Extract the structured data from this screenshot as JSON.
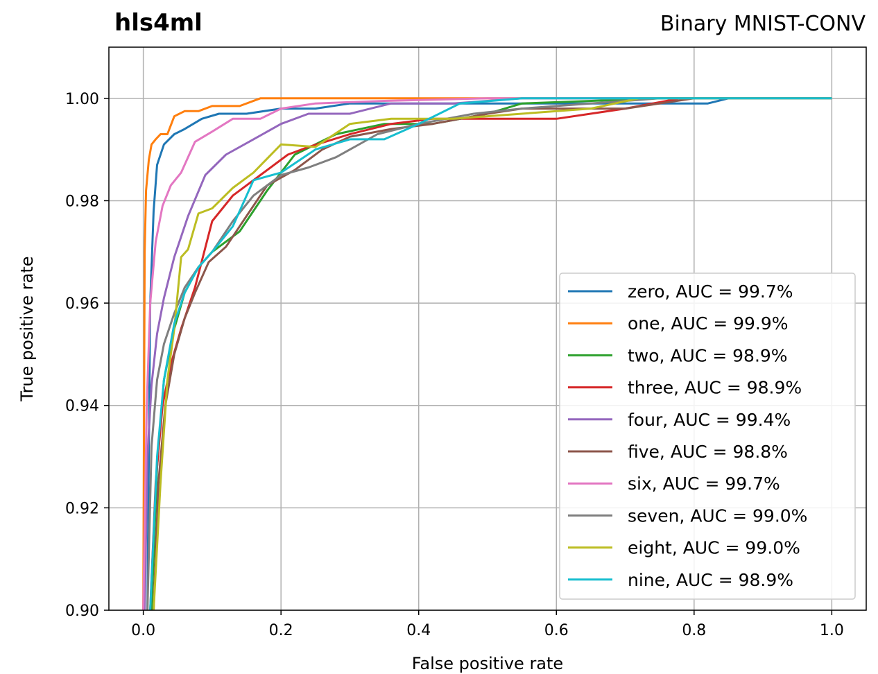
{
  "chart_data": {
    "type": "line",
    "title": "hls4ml",
    "subtitle": "Binary MNIST-CONV",
    "xlabel": "False positive rate",
    "ylabel": "True positive rate",
    "xlim": [
      -0.05,
      1.05
    ],
    "ylim": [
      0.9,
      1.01
    ],
    "xticks": [
      0.0,
      0.2,
      0.4,
      0.6,
      0.8,
      1.0
    ],
    "xtick_labels": [
      "0.0",
      "0.2",
      "0.4",
      "0.6",
      "0.8",
      "1.0"
    ],
    "yticks": [
      0.9,
      0.92,
      0.94,
      0.96,
      0.98,
      1.0
    ],
    "ytick_labels": [
      "0.90",
      "0.92",
      "0.94",
      "0.96",
      "0.98",
      "1.00"
    ],
    "grid": true,
    "legend_position": "lower-right",
    "series": [
      {
        "name": "zero, AUC = 99.7%",
        "color": "#1f77b4",
        "x": [
          0.006,
          0.01,
          0.015,
          0.02,
          0.03,
          0.045,
          0.06,
          0.085,
          0.11,
          0.15,
          0.2,
          0.25,
          0.3,
          0.5,
          0.6,
          0.8,
          0.82,
          0.85,
          1.0
        ],
        "y": [
          0.9,
          0.96,
          0.978,
          0.987,
          0.991,
          0.993,
          0.994,
          0.996,
          0.997,
          0.997,
          0.998,
          0.998,
          0.999,
          0.999,
          0.999,
          0.999,
          0.999,
          1.0,
          1.0
        ]
      },
      {
        "name": "one, AUC = 99.9%",
        "color": "#ff7f0e",
        "x": [
          0.0,
          0.002,
          0.004,
          0.008,
          0.012,
          0.018,
          0.025,
          0.035,
          0.045,
          0.06,
          0.08,
          0.1,
          0.14,
          0.17,
          0.2,
          1.0
        ],
        "y": [
          0.9,
          0.97,
          0.982,
          0.988,
          0.991,
          0.992,
          0.993,
          0.993,
          0.9965,
          0.9975,
          0.9975,
          0.9985,
          0.9985,
          1.0,
          1.0,
          1.0
        ],
        "y_note": ""
      },
      {
        "name": "two, AUC = 98.9%",
        "color": "#2ca02c",
        "x": [
          0.012,
          0.02,
          0.03,
          0.045,
          0.06,
          0.08,
          0.1,
          0.14,
          0.18,
          0.22,
          0.28,
          0.35,
          0.42,
          0.5,
          0.55,
          0.75,
          1.0
        ],
        "y": [
          0.9,
          0.928,
          0.945,
          0.955,
          0.962,
          0.967,
          0.97,
          0.974,
          0.982,
          0.989,
          0.993,
          0.995,
          0.995,
          0.997,
          0.999,
          1.0,
          1.0
        ]
      },
      {
        "name": "three, AUC = 98.9%",
        "color": "#d62728",
        "x": [
          0.01,
          0.018,
          0.028,
          0.04,
          0.055,
          0.075,
          0.1,
          0.13,
          0.17,
          0.21,
          0.24,
          0.3,
          0.36,
          0.42,
          0.5,
          0.6,
          0.7,
          0.78,
          1.0
        ],
        "y": [
          0.9,
          0.925,
          0.94,
          0.948,
          0.955,
          0.963,
          0.976,
          0.981,
          0.985,
          0.989,
          0.9905,
          0.993,
          0.995,
          0.996,
          0.996,
          0.996,
          0.998,
          1.0,
          1.0
        ]
      },
      {
        "name": "four, AUC = 99.4%",
        "color": "#9467bd",
        "x": [
          0.002,
          0.006,
          0.012,
          0.02,
          0.03,
          0.045,
          0.065,
          0.09,
          0.12,
          0.16,
          0.2,
          0.24,
          0.3,
          0.36,
          0.45,
          0.55,
          1.0
        ],
        "y": [
          0.9,
          0.93,
          0.944,
          0.954,
          0.961,
          0.969,
          0.977,
          0.985,
          0.989,
          0.992,
          0.995,
          0.997,
          0.997,
          0.999,
          0.999,
          1.0,
          1.0
        ]
      },
      {
        "name": "five, AUC = 98.8%",
        "color": "#8c564b",
        "x": [
          0.015,
          0.022,
          0.032,
          0.045,
          0.06,
          0.075,
          0.095,
          0.12,
          0.15,
          0.18,
          0.22,
          0.26,
          0.3,
          0.36,
          0.42,
          0.5,
          0.55,
          0.7,
          0.8,
          1.0
        ],
        "y": [
          0.9,
          0.925,
          0.94,
          0.95,
          0.957,
          0.962,
          0.968,
          0.971,
          0.977,
          0.983,
          0.986,
          0.99,
          0.9925,
          0.994,
          0.995,
          0.997,
          0.998,
          0.998,
          1.0,
          1.0
        ]
      },
      {
        "name": "six, AUC = 99.7%",
        "color": "#e377c2",
        "x": [
          0.0,
          0.005,
          0.01,
          0.018,
          0.028,
          0.04,
          0.055,
          0.075,
          0.1,
          0.13,
          0.17,
          0.2,
          0.25,
          0.35,
          0.5,
          1.0
        ],
        "y": [
          0.9,
          0.94,
          0.96,
          0.972,
          0.979,
          0.983,
          0.9855,
          0.9915,
          0.9935,
          0.996,
          0.996,
          0.998,
          0.999,
          0.9995,
          1.0,
          1.0
        ]
      },
      {
        "name": "seven, AUC = 99.0%",
        "color": "#7f7f7f",
        "x": [
          0.006,
          0.012,
          0.02,
          0.03,
          0.045,
          0.06,
          0.08,
          0.1,
          0.13,
          0.16,
          0.2,
          0.24,
          0.28,
          0.34,
          0.4,
          0.48,
          0.55,
          0.75,
          1.0
        ],
        "y": [
          0.9,
          0.932,
          0.945,
          0.952,
          0.958,
          0.963,
          0.967,
          0.97,
          0.976,
          0.981,
          0.985,
          0.9865,
          0.9885,
          0.993,
          0.995,
          0.997,
          0.998,
          1.0,
          1.0
        ]
      },
      {
        "name": "eight, AUC = 99.0%",
        "color": "#bcbd22",
        "x": [
          0.015,
          0.025,
          0.035,
          0.045,
          0.055,
          0.065,
          0.08,
          0.1,
          0.13,
          0.16,
          0.2,
          0.25,
          0.3,
          0.36,
          0.45,
          0.55,
          0.65,
          0.72,
          1.0
        ],
        "y": [
          0.9,
          0.925,
          0.945,
          0.955,
          0.969,
          0.9705,
          0.9775,
          0.9785,
          0.9825,
          0.9855,
          0.991,
          0.9905,
          0.995,
          0.996,
          0.996,
          0.997,
          0.998,
          1.0,
          1.0
        ]
      },
      {
        "name": "nine, AUC = 98.9%",
        "color": "#17becf",
        "x": [
          0.01,
          0.02,
          0.03,
          0.045,
          0.06,
          0.08,
          0.1,
          0.13,
          0.16,
          0.2,
          0.25,
          0.3,
          0.35,
          0.4,
          0.46,
          0.55,
          1.0
        ],
        "y": [
          0.9,
          0.93,
          0.945,
          0.956,
          0.962,
          0.967,
          0.97,
          0.975,
          0.984,
          0.9855,
          0.99,
          0.992,
          0.992,
          0.995,
          0.999,
          1.0,
          1.0
        ]
      }
    ]
  }
}
